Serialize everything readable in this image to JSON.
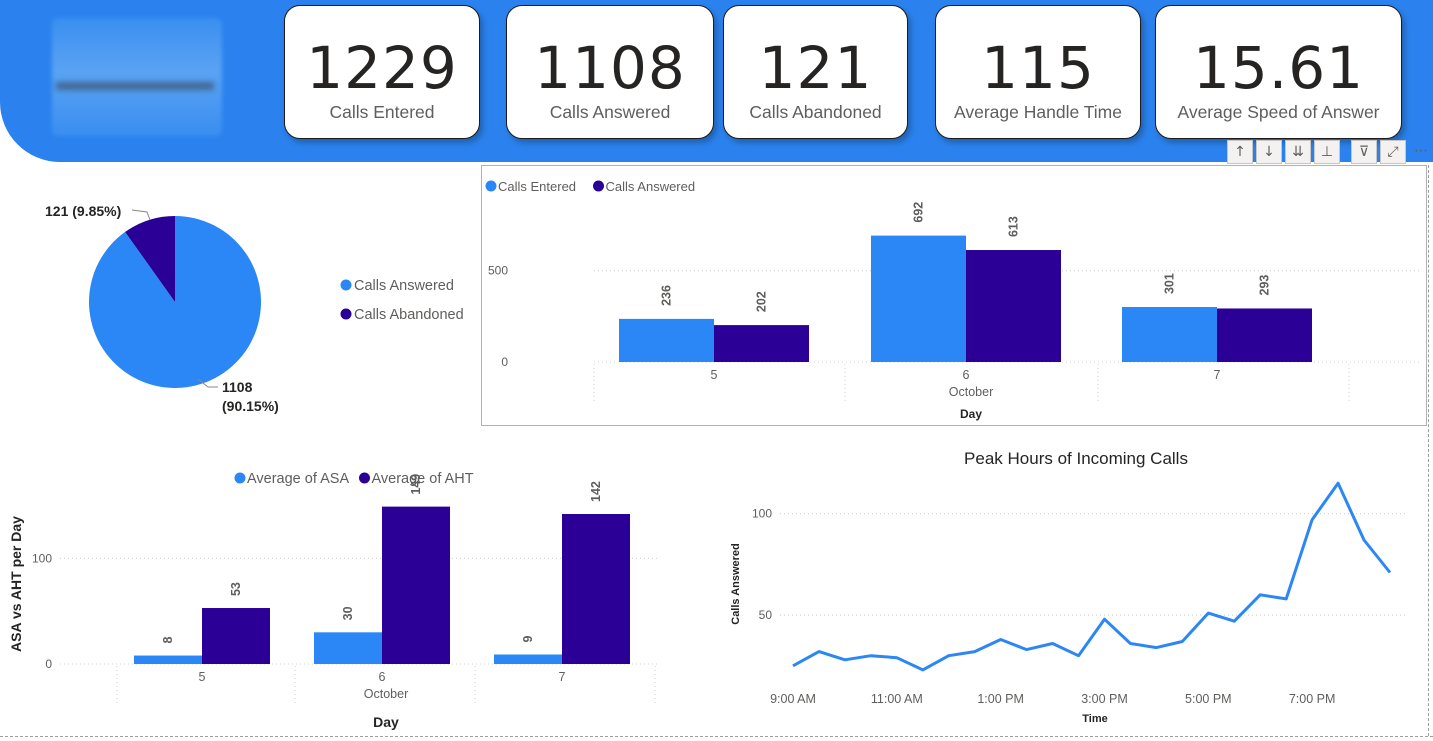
{
  "kpis": [
    {
      "value": "1229",
      "label": "Calls Entered"
    },
    {
      "value": "1108",
      "label": "Calls Answered"
    },
    {
      "value": "121",
      "label": "Calls Abandoned"
    },
    {
      "value": "115",
      "label": "Average Handle Time"
    },
    {
      "value": "15.61",
      "label": "Average Speed of Answer"
    }
  ],
  "toolbar": {
    "icons": [
      "arrow-up-icon",
      "arrow-down-icon",
      "double-arrow-down-icon",
      "expand-hierarchy-icon",
      "filter-icon",
      "focus-mode-icon",
      "more-options-icon"
    ],
    "glyphs": [
      "↑",
      "↓",
      "⇊",
      "⊥",
      "⊽",
      "⤢",
      "⋯"
    ]
  },
  "colors": {
    "light_blue": "#2b87f5",
    "dark_purple": "#2a0096",
    "header": "#2b82ee"
  },
  "chart_data": [
    {
      "type": "pie",
      "labels": [
        "Calls Answered",
        "Calls Abandoned"
      ],
      "values": [
        1108,
        121
      ],
      "data_labels": [
        "1108 (90.15%)",
        "121 (9.85%)"
      ],
      "legend": [
        "Calls Answered",
        "Calls Abandoned"
      ],
      "legend_position": "right"
    },
    {
      "type": "bar",
      "categories": [
        "5",
        "6",
        "7"
      ],
      "series": [
        {
          "name": "Calls Entered",
          "values": [
            236,
            692,
            301
          ]
        },
        {
          "name": "Calls Answered",
          "values": [
            202,
            613,
            293
          ]
        }
      ],
      "x_group_label": "October",
      "xlabel": "Day",
      "ylabel": "",
      "y_ticks": [
        0,
        500
      ],
      "ylim": [
        0,
        750
      ],
      "legend_position": "top-left",
      "grid": true
    },
    {
      "type": "bar",
      "categories": [
        "5",
        "6",
        "7"
      ],
      "series": [
        {
          "name": "Average of ASA",
          "values": [
            8,
            30,
            9
          ]
        },
        {
          "name": "Average of AHT",
          "values": [
            53,
            149,
            142
          ]
        }
      ],
      "x_group_label": "October",
      "xlabel": "Day",
      "ylabel": "ASA vs AHT per Day",
      "y_ticks": [
        0,
        100
      ],
      "ylim": [
        0,
        160
      ],
      "legend_position": "top-center",
      "grid": true
    },
    {
      "type": "line",
      "title": "Peak Hours of Incoming Calls",
      "xlabel": "Time",
      "ylabel": "Calls Answered",
      "x_ticks": [
        "9:00 AM",
        "11:00 AM",
        "1:00 PM",
        "3:00 PM",
        "5:00 PM",
        "7:00 PM"
      ],
      "x_hours": [
        9,
        9.5,
        10,
        10.5,
        11,
        11.5,
        12,
        12.5,
        13,
        13.5,
        14,
        14.5,
        15,
        15.5,
        16,
        16.5,
        17,
        17.5,
        18,
        18.5,
        19,
        19.5,
        20,
        20.5
      ],
      "values": [
        25,
        32,
        28,
        30,
        29,
        23,
        30,
        32,
        38,
        33,
        36,
        30,
        48,
        36,
        34,
        37,
        51,
        47,
        60,
        58,
        97,
        115,
        87,
        71
      ],
      "y_ticks": [
        50,
        100
      ],
      "ylim": [
        20,
        120
      ],
      "grid": true
    }
  ]
}
